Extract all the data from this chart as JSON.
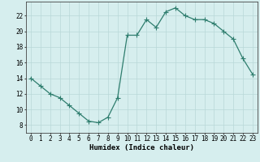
{
  "x": [
    0,
    1,
    2,
    3,
    4,
    5,
    6,
    7,
    8,
    9,
    10,
    11,
    12,
    13,
    14,
    15,
    16,
    17,
    18,
    19,
    20,
    21,
    22,
    23
  ],
  "y": [
    14,
    13,
    12,
    11.5,
    10.5,
    9.5,
    8.5,
    8.3,
    9.0,
    11.5,
    19.5,
    19.5,
    21.5,
    20.5,
    22.5,
    23.0,
    22.0,
    21.5,
    21.5,
    21.0,
    20.0,
    19.0,
    16.5,
    14.5
  ],
  "line_color": "#2e7d6e",
  "marker": "+",
  "marker_size": 4,
  "bg_color": "#d6eeee",
  "grid_color": "#b8d8d8",
  "xlabel": "Humidex (Indice chaleur)",
  "xticks": [
    0,
    1,
    2,
    3,
    4,
    5,
    6,
    7,
    8,
    9,
    10,
    11,
    12,
    13,
    14,
    15,
    16,
    17,
    18,
    19,
    20,
    21,
    22,
    23
  ],
  "yticks": [
    8,
    10,
    12,
    14,
    16,
    18,
    20,
    22
  ],
  "ylim": [
    7,
    23.8
  ],
  "xlim": [
    -0.5,
    23.5
  ],
  "label_fontsize": 6.5,
  "tick_fontsize": 5.5
}
